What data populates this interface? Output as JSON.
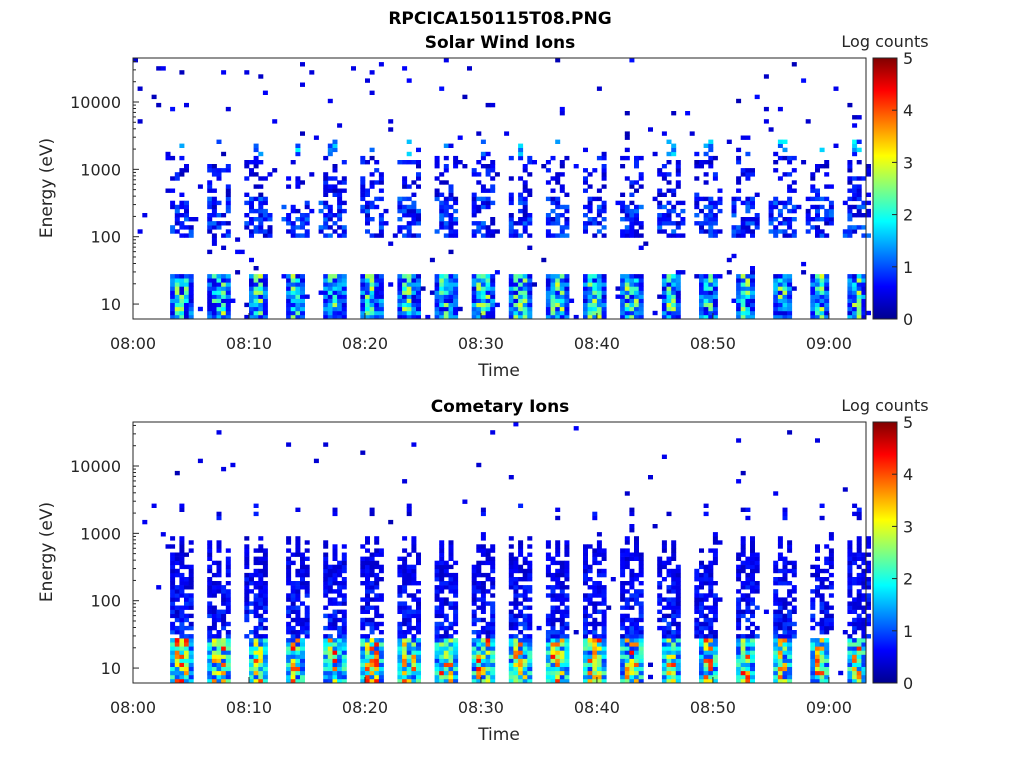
{
  "figure_title": "RPCICA150115T08.PNG",
  "colorbar_palette": [
    "#00008f",
    "#0000ff",
    "#0080ff",
    "#00ffff",
    "#80ff80",
    "#ffff00",
    "#ff8000",
    "#ff0000",
    "#800000"
  ],
  "chart_data": [
    {
      "type": "heatmap",
      "title": "Solar Wind Ions",
      "xlabel": "Time",
      "ylabel": "Energy (eV)",
      "yscale": "log",
      "xticks": [
        "08:00",
        "08:10",
        "08:20",
        "08:30",
        "08:40",
        "08:50",
        "09:00"
      ],
      "yticks": [
        "10",
        "100",
        "1000",
        "10000"
      ],
      "xlim_minutes": [
        0,
        63.2
      ],
      "ylim": [
        6,
        45000
      ],
      "colorbar": {
        "label": "Log counts",
        "ticks": [
          "0",
          "1",
          "2",
          "3",
          "4",
          "5"
        ],
        "range": [
          0,
          5
        ]
      },
      "sweep_times_min": [
        4.0,
        7.2,
        10.6,
        13.9,
        17.1,
        20.3,
        23.5,
        26.7,
        30.0,
        33.2,
        36.4,
        39.6,
        42.8,
        46.1,
        49.3,
        52.6,
        55.8,
        59.0,
        62.2
      ],
      "max_log_counts": 2.6
    },
    {
      "type": "heatmap",
      "title": "Cometary Ions",
      "xlabel": "Time",
      "ylabel": "Energy (eV)",
      "yscale": "log",
      "xticks": [
        "08:00",
        "08:10",
        "08:20",
        "08:30",
        "08:40",
        "08:50",
        "09:00"
      ],
      "yticks": [
        "10",
        "100",
        "1000",
        "10000"
      ],
      "xlim_minutes": [
        0,
        63.2
      ],
      "ylim": [
        6,
        45000
      ],
      "colorbar": {
        "label": "Log counts",
        "ticks": [
          "0",
          "1",
          "2",
          "3",
          "4",
          "5"
        ],
        "range": [
          0,
          5
        ]
      },
      "sweep_times_min": [
        4.0,
        7.2,
        10.6,
        13.9,
        17.1,
        20.3,
        23.5,
        26.7,
        30.0,
        33.2,
        36.4,
        39.6,
        42.8,
        46.1,
        49.3,
        52.6,
        55.8,
        59.0,
        62.2
      ],
      "max_log_counts": 3.6
    }
  ]
}
